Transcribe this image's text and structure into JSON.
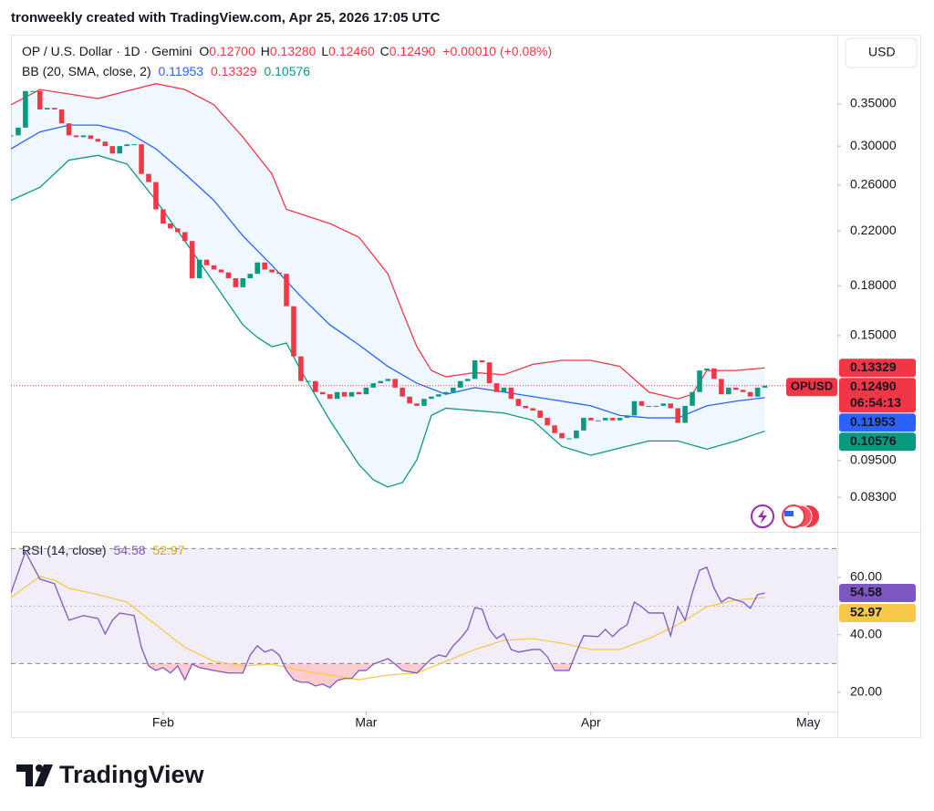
{
  "header": {
    "text": "tronweekly created with TradingView.com, Apr 25, 2026 17:05 UTC"
  },
  "currency_button": "USD",
  "footer_logo": "TradingView",
  "chart_data": [
    {
      "type": "candlestick",
      "title": "OP / U.S. Dollar · 1D · Gemini",
      "symbol": "OPUSD",
      "countdown": "06:54:13",
      "ohlc": [
        {
          "key": "O",
          "value": "0.12700"
        },
        {
          "key": "H",
          "value": "0.13280"
        },
        {
          "key": "L",
          "value": "0.12460"
        },
        {
          "key": "C",
          "value": "0.12490"
        }
      ],
      "change": "+0.00010 (+0.08%)",
      "up_color": "#089981",
      "down_color": "#f23645",
      "x": [
        0,
        1,
        2,
        3,
        4,
        5,
        6,
        7,
        8,
        9,
        10,
        11,
        12,
        13,
        14,
        15,
        16,
        17,
        18,
        19,
        20,
        21,
        22,
        23,
        24,
        25,
        26,
        27,
        28,
        29,
        30,
        31,
        32,
        33,
        34,
        35,
        36,
        37,
        38,
        39,
        40,
        41,
        42,
        43,
        44,
        45,
        46,
        47,
        48,
        49,
        50,
        51,
        52,
        53,
        54,
        55,
        56,
        57,
        58,
        59,
        60,
        61,
        62,
        63,
        64,
        65,
        66,
        67,
        68,
        69,
        70,
        71,
        72,
        73,
        74,
        75,
        76,
        77,
        78,
        79,
        80,
        81,
        82,
        83,
        84,
        85,
        86,
        87,
        88,
        89,
        90,
        91,
        92,
        93,
        94,
        95,
        96,
        97,
        98,
        99,
        100,
        101,
        102,
        103,
        104
      ],
      "close": [
        0.312,
        0.321,
        0.367,
        0.367,
        0.343,
        0.345,
        0.343,
        0.326,
        0.312,
        0.31,
        0.312,
        0.308,
        0.305,
        0.3,
        0.292,
        0.3,
        0.302,
        0.302,
        0.271,
        0.263,
        0.238,
        0.226,
        0.222,
        0.219,
        0.212,
        0.185,
        0.198,
        0.194,
        0.191,
        0.189,
        0.185,
        0.179,
        0.185,
        0.188,
        0.196,
        0.191,
        0.189,
        0.188,
        0.167,
        0.139,
        0.127,
        0.127,
        0.122,
        0.121,
        0.119,
        0.122,
        0.12,
        0.122,
        0.121,
        0.124,
        0.126,
        0.127,
        0.128,
        0.124,
        0.12,
        0.117,
        0.116,
        0.119,
        0.12,
        0.121,
        0.122,
        0.124,
        0.127,
        0.128,
        0.137,
        0.136,
        0.126,
        0.122,
        0.124,
        0.119,
        0.116,
        0.115,
        0.114,
        0.111,
        0.108,
        0.105,
        0.103,
        0.103,
        0.106,
        0.111,
        0.11,
        0.11,
        0.111,
        0.11,
        0.111,
        0.112,
        0.118,
        0.116,
        0.116,
        0.116,
        0.117,
        0.115,
        0.109,
        0.116,
        0.122,
        0.132,
        0.133,
        0.128,
        0.121,
        0.124,
        0.123,
        0.122,
        0.12,
        0.124,
        0.1249
      ],
      "xlim": [
        0,
        114
      ],
      "ylim": [
        0.0734,
        0.451
      ],
      "log_scale": true,
      "grid": false,
      "yticks": [
        {
          "value": 0.35,
          "label": "0.35000"
        },
        {
          "value": 0.3,
          "label": "0.30000"
        },
        {
          "value": 0.26,
          "label": "0.26000"
        },
        {
          "value": 0.22,
          "label": "0.22000"
        },
        {
          "value": 0.18,
          "label": "0.18000"
        },
        {
          "value": 0.15,
          "label": "0.15000"
        },
        {
          "value": 0.095,
          "label": "0.09500"
        },
        {
          "value": 0.083,
          "label": "0.08300"
        }
      ],
      "indicator": {
        "title": "BB (20, SMA, close, 2)",
        "fill": "#2196f3",
        "series": [
          {
            "color": "#2962ff",
            "last_label": "0.11953",
            "x": [
              0,
              4,
              8,
              12,
              16,
              20,
              24,
              28,
              32,
              36,
              40,
              44,
              48,
              52,
              56,
              60,
              64,
              68,
              72,
              76,
              80,
              84,
              88,
              92,
              96,
              100,
              104
            ],
            "values": [
              0.297,
              0.316,
              0.324,
              0.324,
              0.316,
              0.297,
              0.271,
              0.246,
              0.216,
              0.194,
              0.173,
              0.156,
              0.145,
              0.134,
              0.126,
              0.121,
              0.124,
              0.122,
              0.12,
              0.118,
              0.116,
              0.112,
              0.111,
              0.111,
              0.116,
              0.118,
              0.11953
            ]
          },
          {
            "color": "#f23645",
            "last_label": "0.13329",
            "x": [
              0,
              4,
              8,
              12,
              16,
              20,
              24,
              28,
              32,
              36,
              38,
              40,
              44,
              48,
              52,
              54,
              56,
              58,
              60,
              64,
              68,
              72,
              76,
              80,
              84,
              88,
              92,
              94,
              96,
              100,
              104
            ],
            "values": [
              0.349,
              0.369,
              0.363,
              0.357,
              0.367,
              0.377,
              0.369,
              0.349,
              0.31,
              0.271,
              0.238,
              0.234,
              0.226,
              0.215,
              0.188,
              0.164,
              0.144,
              0.132,
              0.129,
              0.131,
              0.13,
              0.135,
              0.137,
              0.137,
              0.134,
              0.122,
              0.119,
              0.121,
              0.132,
              0.132,
              0.13329
            ]
          },
          {
            "color": "#089981",
            "last_label": "0.10576",
            "x": [
              0,
              4,
              8,
              12,
              16,
              20,
              24,
              28,
              32,
              34,
              36,
              38,
              40,
              44,
              48,
              50,
              52,
              54,
              56,
              58,
              60,
              64,
              68,
              72,
              76,
              80,
              84,
              88,
              92,
              96,
              100,
              104
            ],
            "values": [
              0.246,
              0.258,
              0.285,
              0.29,
              0.281,
              0.246,
              0.212,
              0.182,
              0.156,
              0.149,
              0.144,
              0.146,
              0.132,
              0.11,
              0.0936,
              0.0885,
              0.0862,
              0.0876,
              0.0952,
              0.112,
              0.115,
              0.114,
              0.113,
              0.11,
              0.1,
              0.0968,
              0.0994,
              0.102,
              0.102,
              0.099,
              0.102,
              0.10576
            ]
          }
        ]
      }
    },
    {
      "type": "line",
      "title": "RSI (14, close)",
      "xlim": [
        0,
        114
      ],
      "xticks": [
        {
          "value": 21,
          "label": "Feb"
        },
        {
          "value": 49,
          "label": "Mar"
        },
        {
          "value": 80,
          "label": "Apr"
        },
        {
          "value": 110,
          "label": "May"
        }
      ],
      "ylim": [
        13.3,
        75.2
      ],
      "yticks": [
        {
          "value": 60,
          "label": "60.00"
        },
        {
          "value": 40,
          "label": "40.00"
        },
        {
          "value": 20,
          "label": "20.00"
        }
      ],
      "levels": [
        30,
        50,
        70
      ],
      "band_color": "#7e57c2",
      "oversold_color": "#f23645",
      "series": [
        {
          "color": "#7e57c2",
          "last_label": "54.58",
          "x": [
            0,
            2,
            3,
            4,
            6,
            7,
            8,
            10,
            12,
            13,
            14,
            15,
            17,
            18,
            19,
            20,
            21,
            22,
            23,
            24,
            25,
            26,
            28,
            30,
            32,
            33,
            34,
            35,
            36,
            37,
            38,
            39,
            40,
            41,
            42,
            43,
            44,
            45,
            46,
            47,
            48,
            49,
            50,
            52,
            53,
            54,
            56,
            57,
            58,
            59,
            60,
            61,
            62,
            63,
            64,
            65,
            66,
            67,
            68,
            69,
            70,
            72,
            73,
            74,
            75,
            77,
            78,
            79,
            81,
            82,
            83,
            84,
            85,
            86,
            87,
            88,
            89,
            90,
            91,
            92,
            93,
            94,
            95,
            96,
            97,
            98,
            99,
            100,
            101,
            102,
            103,
            104
          ],
          "values": [
            54.6,
            68.9,
            64.1,
            59.4,
            57.8,
            51.4,
            45.1,
            46.7,
            45.7,
            40.3,
            45.1,
            47.6,
            46.7,
            35.6,
            29.2,
            27.6,
            28.6,
            26.7,
            29.2,
            24.4,
            29.8,
            28.6,
            27.6,
            26.7,
            26.7,
            33.0,
            36.2,
            34.0,
            34.9,
            33.0,
            27.6,
            24.4,
            23.5,
            23.5,
            22.2,
            22.9,
            21.6,
            24.1,
            24.8,
            24.8,
            27.6,
            27.6,
            29.8,
            31.7,
            29.8,
            27.6,
            26.7,
            29.2,
            31.7,
            33.0,
            32.4,
            36.2,
            38.7,
            41.9,
            49.5,
            48.9,
            41.9,
            38.7,
            40.3,
            34.9,
            34.0,
            34.9,
            34.9,
            32.4,
            27.6,
            27.6,
            34.0,
            39.7,
            39.4,
            41.9,
            39.4,
            41.9,
            43.5,
            51.4,
            49.8,
            47.6,
            47.6,
            47.6,
            39.7,
            49.8,
            45.1,
            54.6,
            62.5,
            63.5,
            56.2,
            51.4,
            53.0,
            52.1,
            51.4,
            49.2,
            54.0,
            54.58
          ]
        },
        {
          "color": "#f7c948",
          "last_label": "52.97",
          "x": [
            0,
            4,
            6,
            8,
            12,
            16,
            20,
            24,
            28,
            32,
            36,
            40,
            44,
            48,
            52,
            56,
            60,
            64,
            68,
            72,
            76,
            80,
            84,
            88,
            92,
            96,
            100,
            104
          ],
          "values": [
            53.0,
            60.3,
            59.0,
            56.2,
            54.0,
            51.4,
            43.5,
            35.6,
            30.8,
            29.2,
            29.8,
            27.6,
            26.0,
            24.4,
            26.0,
            26.7,
            30.8,
            34.9,
            38.1,
            38.7,
            37.1,
            34.9,
            34.9,
            38.7,
            43.5,
            49.8,
            52.1,
            52.97
          ]
        }
      ]
    }
  ]
}
